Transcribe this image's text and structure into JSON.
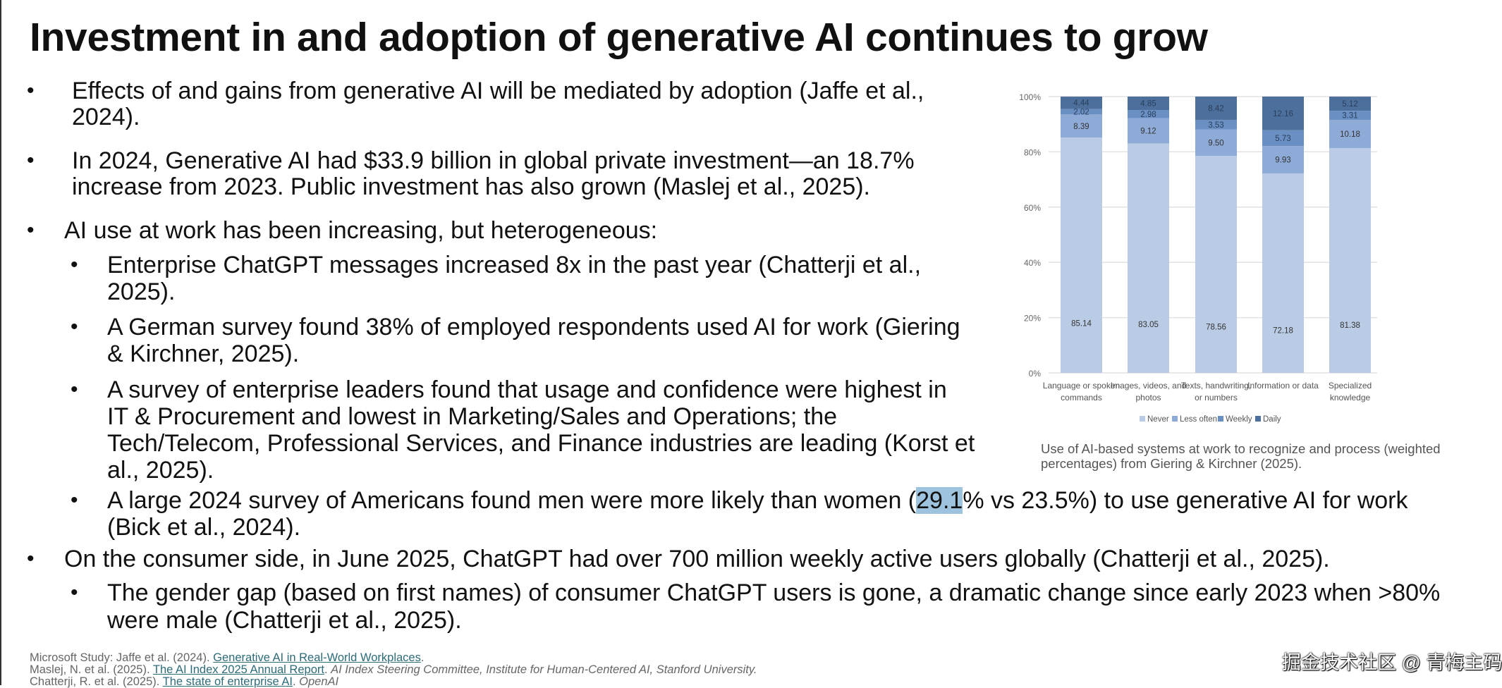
{
  "title": "Investment in and adoption of generative AI continues to grow",
  "bullets": [
    {
      "level": 1,
      "lines": [
        "Effects of and gains from generative AI will be mediated by adoption (Jaffe et al.,",
        "2024)."
      ]
    },
    {
      "level": 1,
      "lines": [
        "In 2024, Generative AI had $33.9 billion in global private investment—an 18.7%",
        "increase from 2023. Public investment has also grown (Maslej et al., 2025)."
      ]
    },
    {
      "level": 1,
      "lines": [
        "AI use at work has been increasing, but heterogeneous:"
      ]
    },
    {
      "level": 2,
      "lines": [
        "Enterprise ChatGPT messages increased 8x in the past year (Chatterji et al.,",
        "2025)."
      ]
    },
    {
      "level": 2,
      "lines": [
        "A German survey found 38% of employed respondents used AI for work (Giering",
        "& Kirchner, 2025)."
      ]
    },
    {
      "level": 2,
      "lines": [
        "A survey of enterprise leaders found that usage and confidence were highest in",
        "IT & Procurement and lowest in Marketing/Sales and Operations; the",
        "Tech/Telecom, Professional Services, and Finance industries are leading (Korst et",
        "al., 2025)."
      ]
    },
    {
      "level": 2,
      "lines": [
        "A large 2024 survey of Americans found men were more likely than women (",
        "(Bick et al., 2024)."
      ],
      "highlight": "29.1",
      "after_highlight": "% vs 23.5%) to use generative AI for work"
    },
    {
      "level": 1,
      "lines": [
        "On the consumer side, in June 2025, ChatGPT had over 700 million weekly active users globally (Chatterji et al., 2025)."
      ]
    },
    {
      "level": 2,
      "lines": [
        "The gender gap (based on first names) of consumer ChatGPT users is gone, a dramatic change since early 2023 when >80%",
        "were male (Chatterji et al., 2025)."
      ]
    }
  ],
  "bullet_symbol": "•",
  "chart_data": {
    "type": "bar",
    "stacked": true,
    "categories": [
      [
        "Language or spoken",
        "commands"
      ],
      [
        "Images, videos, and",
        "photos"
      ],
      [
        "Texts, handwriting,",
        "or numbers"
      ],
      [
        "Information or data",
        ""
      ],
      [
        "Specialized",
        "knowledge"
      ]
    ],
    "series": [
      {
        "name": "Never",
        "values": [
          85.14,
          83.05,
          78.56,
          72.18,
          81.38
        ],
        "color": "#bacce5"
      },
      {
        "name": "Less often",
        "values": [
          8.39,
          9.12,
          9.5,
          9.93,
          10.18
        ],
        "color": "#8eabd7"
      },
      {
        "name": "Weekly",
        "values": [
          2.02,
          2.98,
          3.53,
          5.73,
          3.31
        ],
        "color": "#6a8fc3"
      },
      {
        "name": "Daily",
        "values": [
          4.44,
          4.85,
          8.42,
          12.16,
          5.12
        ],
        "color": "#4d6f9b"
      }
    ],
    "data_labels": [
      [
        "85.14",
        "83.05",
        "78.56",
        "72.18",
        "81.38"
      ],
      [
        "8.39",
        "9.12",
        "9.50",
        "9.93",
        "10.18"
      ],
      [
        "2.02",
        "2.98",
        "3.53",
        "5.73",
        "3.31"
      ],
      [
        "4.44",
        "4.85",
        "8.42",
        "12.16",
        "5.12"
      ]
    ],
    "yticks": [
      "0%",
      "20%",
      "40%",
      "60%",
      "80%",
      "100%"
    ],
    "ylim": [
      0,
      100
    ],
    "grid": true,
    "legend": "bottom",
    "caption": "Use of AI-based systems at work to recognize and process (weighted percentages) from Giering & Kirchner (2025)."
  },
  "caption_lines": [
    "Use of AI-based systems at work to recognize and process (weighted",
    "percentages) from Giering & Kirchner (2025)."
  ],
  "footer": [
    {
      "pre": "Microsoft Study: Jaffe et al. (2024). ",
      "link": "Generative AI in Real-World Workplaces",
      "post": ".",
      "italic": ""
    },
    {
      "pre": "Maslej, N. et al. (2025). ",
      "link": "The AI Index 2025 Annual Report",
      "post": ". ",
      "italic": "AI Index Steering Committee, Institute for Human-Centered AI, Stanford University."
    },
    {
      "pre": "Chatterji, R. et al. (2025). ",
      "link": "The state of enterprise AI",
      "post": ". ",
      "italic": "OpenAI"
    }
  ],
  "watermark": "掘金技术社区 @ 青梅主码"
}
